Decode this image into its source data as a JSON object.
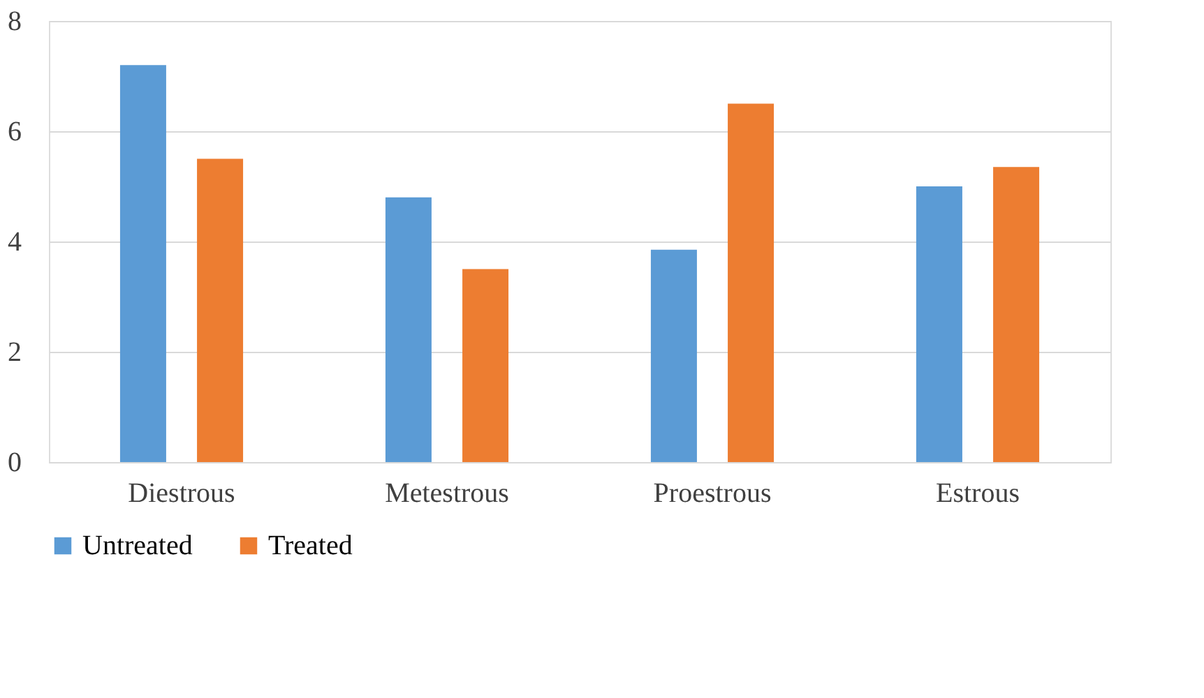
{
  "chart_data": {
    "type": "bar",
    "categories": [
      "Diestrous",
      "Metestrous",
      "Proestrous",
      "Estrous"
    ],
    "series": [
      {
        "name": "Untreated",
        "color": "#5b9bd5",
        "values": [
          7.2,
          4.8,
          3.85,
          5.0
        ]
      },
      {
        "name": "Treated",
        "color": "#ed7d31",
        "values": [
          5.5,
          3.5,
          6.5,
          5.35
        ]
      }
    ],
    "ylim": [
      0,
      8
    ],
    "yticks": [
      0,
      2,
      4,
      6,
      8
    ],
    "grid": "y",
    "legend": "bottom"
  }
}
